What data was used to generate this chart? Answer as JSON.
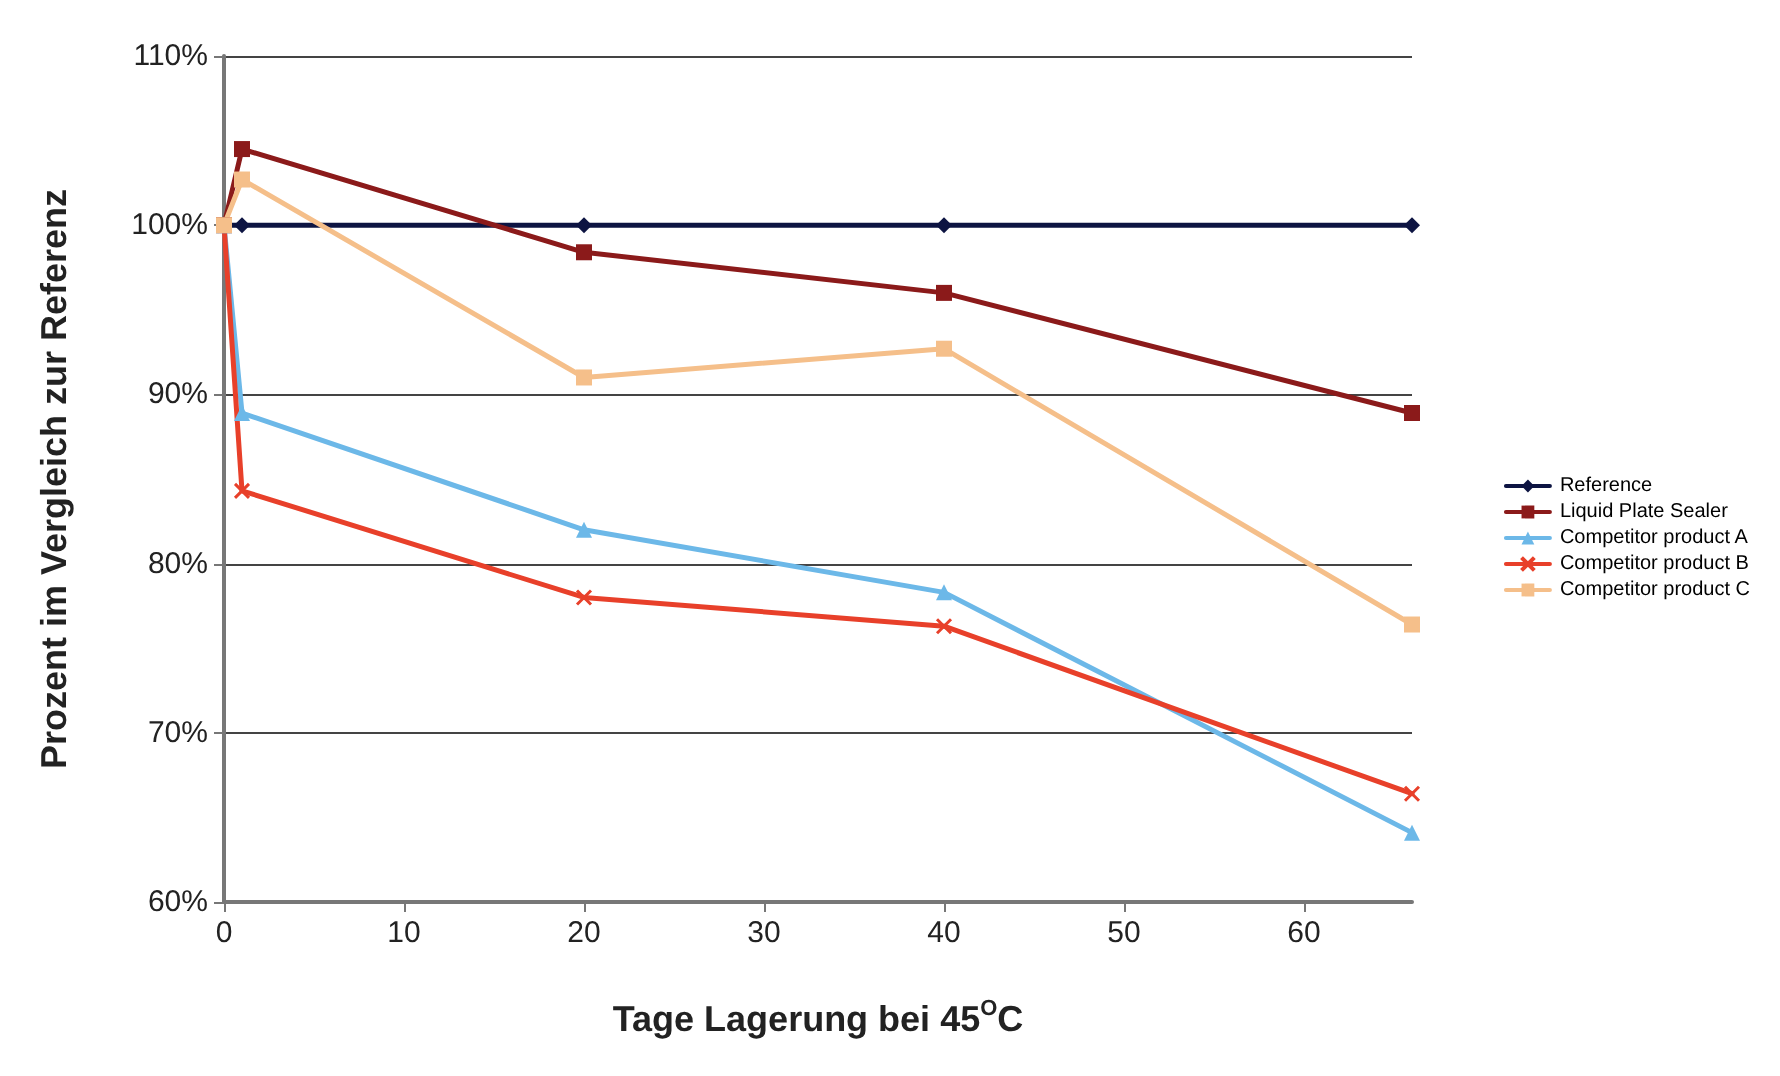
{
  "chart_data": {
    "type": "line",
    "xlabel": "Tage Lagerung bei 45$^{O}$C",
    "ylabel": "Prozent im Vergleich zur Referenz",
    "x": [
      0,
      1,
      20,
      40,
      66
    ],
    "series": [
      {
        "name": "Reference",
        "color": "#0d1442",
        "marker": "diamond",
        "values": [
          100,
          100,
          100,
          100,
          100
        ]
      },
      {
        "name": "Liquid Plate Sealer",
        "color": "#8b1a1a",
        "marker": "square",
        "values": [
          100,
          104.5,
          98.4,
          96.0,
          88.9
        ]
      },
      {
        "name": "Competitor product A",
        "color": "#6cb8e8",
        "marker": "triangle",
        "values": [
          100,
          88.9,
          82.0,
          78.3,
          64.1
        ]
      },
      {
        "name": "Competitor product B",
        "color": "#e8402a",
        "marker": "cross",
        "values": [
          100,
          84.3,
          78.0,
          76.3,
          66.4
        ]
      },
      {
        "name": "Competitor product C",
        "color": "#f5bf8a",
        "marker": "square",
        "values": [
          100,
          102.7,
          91.0,
          92.7,
          76.4
        ]
      }
    ],
    "xlim": [
      0,
      66
    ],
    "xticks": [
      0,
      10,
      20,
      30,
      40,
      50,
      60
    ],
    "ylim": [
      60,
      110
    ],
    "yticks": [
      {
        "value": 60,
        "label": "60%"
      },
      {
        "value": 70,
        "label": "70%"
      },
      {
        "value": 80,
        "label": "80%"
      },
      {
        "value": 90,
        "label": "90%"
      },
      {
        "value": 100,
        "label": "100%"
      },
      {
        "value": 110,
        "label": "110%"
      }
    ],
    "grid": "y",
    "legend": "right",
    "line_style": "solid"
  }
}
